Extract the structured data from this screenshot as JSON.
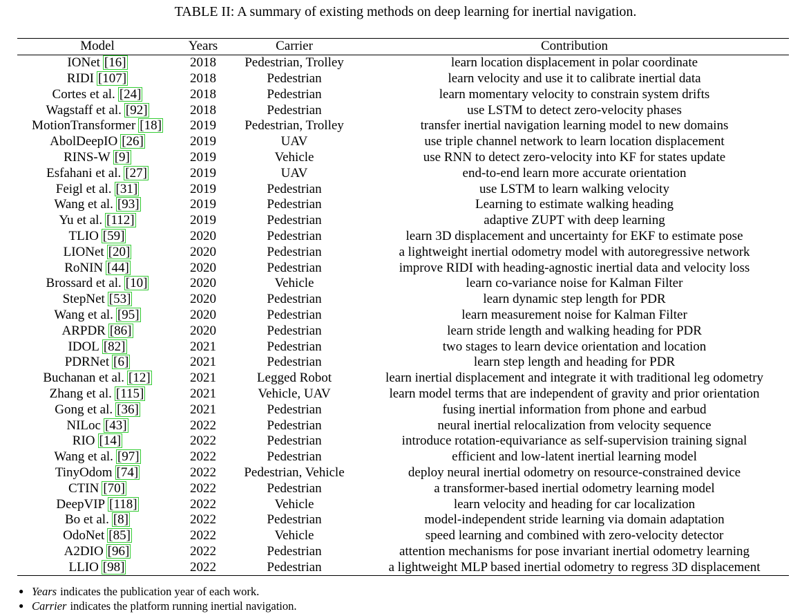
{
  "caption": "TABLE II: A summary of existing methods on deep learning for inertial navigation.",
  "columns": [
    "Model",
    "Years",
    "Carrier",
    "Contribution"
  ],
  "rows": [
    {
      "model": "IONet",
      "ref": "[16]",
      "year": "2018",
      "carrier": "Pedestrian, Trolley",
      "contribution": "learn location displacement in polar coordinate"
    },
    {
      "model": "RIDI",
      "ref": "[107]",
      "year": "2018",
      "carrier": "Pedestrian",
      "contribution": "learn velocity and use it to calibrate inertial data"
    },
    {
      "model": "Cortes et al.",
      "ref": "[24]",
      "year": "2018",
      "carrier": "Pedestrian",
      "contribution": "learn momentary velocity to constrain system drifts"
    },
    {
      "model": "Wagstaff et al.",
      "ref": "[92]",
      "year": "2018",
      "carrier": "Pedestrian",
      "contribution": "use LSTM to detect zero-velocity phases"
    },
    {
      "model": "MotionTransformer",
      "ref": "[18]",
      "year": "2019",
      "carrier": "Pedestrian, Trolley",
      "contribution": "transfer inertial navigation learning model to new domains"
    },
    {
      "model": "AbolDeepIO",
      "ref": "[26]",
      "year": "2019",
      "carrier": "UAV",
      "contribution": "use triple channel network to learn location displacement"
    },
    {
      "model": "RINS-W",
      "ref": "[9]",
      "year": "2019",
      "carrier": "Vehicle",
      "contribution": "use RNN to detect zero-velocity into KF for states update"
    },
    {
      "model": "Esfahani et al.",
      "ref": "[27]",
      "year": "2019",
      "carrier": "UAV",
      "contribution": "end-to-end learn more accurate orientation"
    },
    {
      "model": "Feigl et al.",
      "ref": "[31]",
      "year": "2019",
      "carrier": "Pedestrian",
      "contribution": "use LSTM to learn walking velocity"
    },
    {
      "model": "Wang et al.",
      "ref": "[93]",
      "year": "2019",
      "carrier": "Pedestrian",
      "contribution": "Learning to estimate walking heading"
    },
    {
      "model": "Yu et al.",
      "ref": "[112]",
      "year": "2019",
      "carrier": "Pedestrian",
      "contribution": "adaptive ZUPT with deep learning"
    },
    {
      "model": "TLIO",
      "ref": "[59]",
      "year": "2020",
      "carrier": "Pedestrian",
      "contribution": "learn 3D displacement and uncertainty for EKF to estimate pose"
    },
    {
      "model": "LIONet",
      "ref": "[20]",
      "year": "2020",
      "carrier": "Pedestrian",
      "contribution": "a lightweight inertial odometry model with autoregressive network"
    },
    {
      "model": "RoNIN",
      "ref": "[44]",
      "year": "2020",
      "carrier": "Pedestrian",
      "contribution": "improve RIDI with heading-agnostic inertial data and velocity loss"
    },
    {
      "model": "Brossard et al.",
      "ref": "[10]",
      "year": "2020",
      "carrier": "Vehicle",
      "contribution": "learn co-variance noise for Kalman Filter"
    },
    {
      "model": "StepNet",
      "ref": "[53]",
      "year": "2020",
      "carrier": "Pedestrian",
      "contribution": "learn dynamic step length for PDR"
    },
    {
      "model": "Wang et al.",
      "ref": "[95]",
      "year": "2020",
      "carrier": "Pedestrian",
      "contribution": "learn measurement noise for Kalman Filter"
    },
    {
      "model": "ARPDR",
      "ref": "[86]",
      "year": "2020",
      "carrier": "Pedestrian",
      "contribution": "learn stride length and walking heading for PDR"
    },
    {
      "model": "IDOL",
      "ref": "[82]",
      "year": "2021",
      "carrier": "Pedestrian",
      "contribution": "two stages to learn device orientation and location"
    },
    {
      "model": "PDRNet",
      "ref": "[6]",
      "year": "2021",
      "carrier": "Pedestrian",
      "contribution": "learn step length and heading for PDR"
    },
    {
      "model": "Buchanan et al.",
      "ref": "[12]",
      "year": "2021",
      "carrier": "Legged Robot",
      "contribution": "learn inertial displacement and integrate it with traditional leg odometry"
    },
    {
      "model": "Zhang et al.",
      "ref": "[115]",
      "year": "2021",
      "carrier": "Vehicle, UAV",
      "contribution": "learn model terms that are independent of gravity and prior orientation"
    },
    {
      "model": "Gong et al.",
      "ref": "[36]",
      "year": "2021",
      "carrier": "Pedestrian",
      "contribution": "fusing inertial information from phone and earbud"
    },
    {
      "model": "NILoc",
      "ref": "[43]",
      "year": "2022",
      "carrier": "Pedestrian",
      "contribution": "neural inertial relocalization from velocity sequence"
    },
    {
      "model": "RIO",
      "ref": "[14]",
      "year": "2022",
      "carrier": "Pedestrian",
      "contribution": "introduce rotation-equivariance as self-supervision training signal"
    },
    {
      "model": "Wang et al.",
      "ref": "[97]",
      "year": "2022",
      "carrier": "Pedestrian",
      "contribution": "efficient and low-latent inertial learning model"
    },
    {
      "model": "TinyOdom",
      "ref": "[74]",
      "year": "2022",
      "carrier": "Pedestrian, Vehicle",
      "contribution": "deploy neural inertial odometry on resource-constrained device"
    },
    {
      "model": "CTIN",
      "ref": "[70]",
      "year": "2022",
      "carrier": "Pedestrian",
      "contribution": "a transformer-based inertial odometry learning model"
    },
    {
      "model": "DeepVIP",
      "ref": "[118]",
      "year": "2022",
      "carrier": "Vehicle",
      "contribution": "learn velocity and heading for car localization"
    },
    {
      "model": "Bo et al.",
      "ref": "[8]",
      "year": "2022",
      "carrier": "Pedestrian",
      "contribution": "model-independent stride learning via domain adaptation"
    },
    {
      "model": "OdoNet",
      "ref": "[85]",
      "year": "2022",
      "carrier": "Vehicle",
      "contribution": "speed learning and combined with zero-velocity detector"
    },
    {
      "model": "A2DIO",
      "ref": "[96]",
      "year": "2022",
      "carrier": "Pedestrian",
      "contribution": "attention mechanisms for pose invariant inertial odometry learning"
    },
    {
      "model": "LLIO",
      "ref": "[98]",
      "year": "2022",
      "carrier": "Pedestrian",
      "contribution": "a lightweight MLP based inertial odometry to regress 3D displacement"
    }
  ],
  "notes": [
    {
      "term": "Years",
      "text": "indicates the publication year of each work."
    },
    {
      "term": "Carrier",
      "text": "indicates the platform running inertial navigation."
    }
  ]
}
